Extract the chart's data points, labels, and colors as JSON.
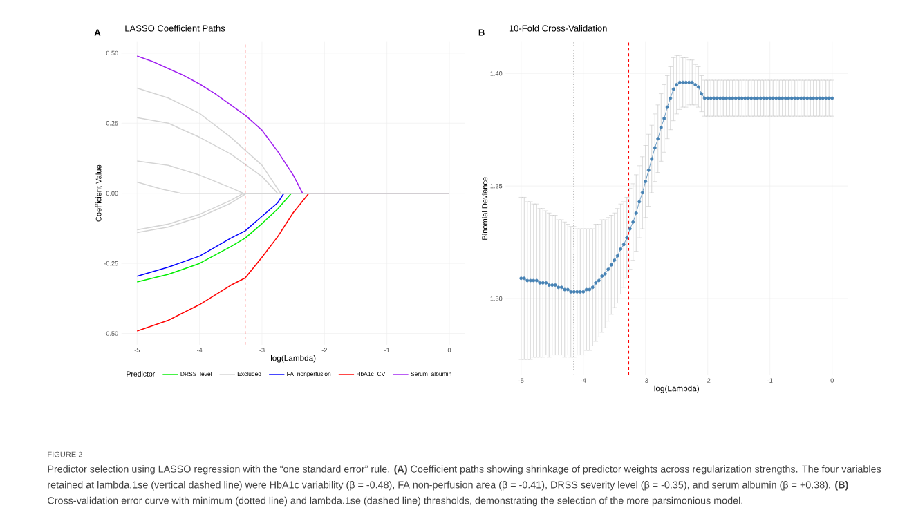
{
  "chart_data": [
    {
      "type": "line",
      "title": "LASSO Coefficient Paths",
      "xlabel": "log(Lambda)",
      "ylabel": "Coefficient Value",
      "legend_title": "Predictor",
      "annotations": [
        "A",
        "FIGURE 2",
        "Predictor selection using LASSO regression with the “one standard error” rule. **(A)** Coefficient paths showing shrinkage of predictor weights across regularization strengths. The four variables retained at lambda.1se (vertical dashed line) were HbA1c variability (β = -0.48), FA non-perfusion area (β = -0.41), DRSS severity level (β = -0.35), and serum albumin (β = +0.38). **(B)** Cross-validation error curve with minimum (dotted line) and lambda.1se (dashed line) thresholds, demonstrating the selection of the more parsimonious model."
      ],
      "xlim": [
        -5.25,
        0.25
      ],
      "ylim": [
        -0.54,
        0.54
      ],
      "xticks": [
        -5,
        -4,
        -3,
        -2,
        -1,
        0
      ],
      "yticks": [
        {
          "value": -0.5,
          "label": "-0.50"
        },
        {
          "value": -0.25,
          "label": "-0.25"
        },
        {
          "value": 0,
          "label": "0.00"
        },
        {
          "value": 0.25,
          "label": "0.25"
        },
        {
          "value": 0.5,
          "label": "0.50"
        }
      ],
      "grid": true,
      "legend": "bottom",
      "ref_lines": [
        {
          "axis": "x",
          "value": -3.27,
          "color": "#ff0000",
          "line_style": "dashed"
        }
      ],
      "series": [
        {
          "name": "DRSS_level",
          "color": "#00ee00",
          "x": [
            -5,
            -4.5,
            -4,
            -3.5,
            -3.27,
            -3,
            -2.75,
            -2.53,
            0
          ],
          "values": [
            -0.316,
            -0.289,
            -0.25,
            -0.19,
            -0.16,
            -0.108,
            -0.056,
            0,
            0
          ]
        },
        {
          "name": "Excluded",
          "color": "#d4d4d4",
          "x": [
            -5,
            -4.5,
            -4,
            -3.5,
            -3,
            -2.7,
            0
          ],
          "values": [
            0.375,
            0.34,
            0.285,
            0.2,
            0.1,
            0,
            0
          ]
        },
        {
          "name": "FA_nonperfusion",
          "color": "#0000ff",
          "x": [
            -5,
            -4.5,
            -4,
            -3.5,
            -3.27,
            -3,
            -2.75,
            -2.65,
            0
          ],
          "values": [
            -0.296,
            -0.263,
            -0.224,
            -0.16,
            -0.134,
            -0.082,
            -0.034,
            0,
            0
          ]
        },
        {
          "name": "HbA1c_CV",
          "color": "#ff0000",
          "x": [
            -5,
            -4.5,
            -4,
            -3.5,
            -3.27,
            -3,
            -2.75,
            -2.5,
            -2.25,
            0
          ],
          "values": [
            -0.491,
            -0.453,
            -0.397,
            -0.328,
            -0.302,
            -0.228,
            -0.155,
            -0.069,
            0,
            0
          ]
        },
        {
          "name": "Serum_albumin",
          "color": "#a020f0",
          "x": [
            -5,
            -4.75,
            -4.5,
            -4.25,
            -4,
            -3.75,
            -3.5,
            -3.25,
            -3,
            -2.75,
            -2.5,
            -2.35,
            0
          ],
          "values": [
            0.49,
            0.47,
            0.445,
            0.42,
            0.39,
            0.355,
            0.315,
            0.275,
            0.225,
            0.15,
            0.065,
            0,
            0
          ]
        },
        {
          "color": "#d4d4d4",
          "x": [
            -5,
            -4.5,
            -4,
            -3.5,
            -3,
            -2.75,
            0
          ],
          "values": [
            0.27,
            0.25,
            0.2,
            0.14,
            0.06,
            0,
            0
          ]
        },
        {
          "color": "#d4d4d4",
          "x": [
            -5,
            -4.5,
            -4,
            -3.5,
            -3.3,
            0
          ],
          "values": [
            0.115,
            0.1,
            0.065,
            0.02,
            0,
            0
          ]
        },
        {
          "color": "#d4d4d4",
          "x": [
            -5,
            -4.6,
            -4.3,
            0
          ],
          "values": [
            0.04,
            0.015,
            0,
            0
          ]
        },
        {
          "color": "#d4d4d4",
          "x": [
            -5,
            -4.5,
            -4,
            -3.5,
            -3.3,
            0
          ],
          "values": [
            -0.13,
            -0.11,
            -0.075,
            -0.025,
            0,
            0
          ]
        },
        {
          "color": "#d4d4d4",
          "x": [
            -5,
            -4.5,
            -4,
            -3.5,
            -3.25,
            0
          ],
          "values": [
            -0.14,
            -0.12,
            -0.085,
            -0.035,
            0,
            0
          ]
        }
      ]
    },
    {
      "type": "line",
      "title": "10-Fold Cross-Validation",
      "xlabel": "log(Lambda)",
      "ylabel": "Binomial Deviance",
      "annotations": [
        "B"
      ],
      "xlim": [
        -5.25,
        0.25
      ],
      "ylim": [
        1.266,
        1.414
      ],
      "xticks": [
        -5,
        -4,
        -3,
        -2,
        -1,
        0
      ],
      "yticks": [
        {
          "value": 1.3,
          "label": "1.30"
        },
        {
          "value": 1.35,
          "label": "1.35"
        },
        {
          "value": 1.4,
          "label": "1.40"
        }
      ],
      "grid": true,
      "marker": "circle",
      "ref_lines": [
        {
          "axis": "x",
          "value": -4.15,
          "color": "#333333",
          "line_style": "dotted"
        },
        {
          "axis": "x",
          "value": -3.27,
          "color": "#ff0000",
          "line_style": "dashed"
        }
      ],
      "x": [
        -5,
        -4.95,
        -4.9,
        -4.85,
        -4.8,
        -4.75,
        -4.7,
        -4.65,
        -4.6,
        -4.55,
        -4.5,
        -4.45,
        -4.4,
        -4.35,
        -4.3,
        -4.25,
        -4.2,
        -4.15,
        -4.1,
        -4.05,
        -4,
        -3.95,
        -3.9,
        -3.85,
        -3.8,
        -3.75,
        -3.7,
        -3.65,
        -3.6,
        -3.55,
        -3.5,
        -3.45,
        -3.4,
        -3.35,
        -3.3,
        -3.25,
        -3.2,
        -3.15,
        -3.1,
        -3.05,
        -3,
        -2.95,
        -2.9,
        -2.85,
        -2.8,
        -2.75,
        -2.7,
        -2.65,
        -2.6,
        -2.55,
        -2.5,
        -2.45,
        -2.4,
        -2.35,
        -2.3,
        -2.25,
        -2.2,
        -2.15,
        -2.1,
        -2.05,
        -2,
        -1.95,
        -1.9,
        -1.85,
        -1.8,
        -1.75,
        -1.7,
        -1.65,
        -1.6,
        -1.55,
        -1.5,
        -1.45,
        -1.4,
        -1.35,
        -1.3,
        -1.25,
        -1.2,
        -1.15,
        -1.1,
        -1.05,
        -1,
        -0.95,
        -0.9,
        -0.85,
        -0.8,
        -0.75,
        -0.7,
        -0.65,
        -0.6,
        -0.55,
        -0.5,
        -0.45,
        -0.4,
        -0.35,
        -0.3,
        -0.25,
        -0.2,
        -0.15,
        -0.1,
        -0.05,
        0
      ],
      "series": [
        {
          "color": "#4682b4",
          "values": [
            1.309,
            1.309,
            1.308,
            1.308,
            1.308,
            1.308,
            1.307,
            1.307,
            1.307,
            1.306,
            1.306,
            1.306,
            1.305,
            1.305,
            1.304,
            1.304,
            1.303,
            1.303,
            1.303,
            1.303,
            1.303,
            1.304,
            1.304,
            1.305,
            1.307,
            1.308,
            1.31,
            1.311,
            1.313,
            1.315,
            1.317,
            1.319,
            1.322,
            1.324,
            1.327,
            1.331,
            1.334,
            1.338,
            1.343,
            1.347,
            1.352,
            1.357,
            1.362,
            1.367,
            1.371,
            1.376,
            1.38,
            1.385,
            1.389,
            1.393,
            1.395,
            1.396,
            1.396,
            1.396,
            1.396,
            1.396,
            1.395,
            1.394,
            1.391,
            1.389,
            1.389,
            1.389,
            1.389,
            1.389,
            1.389,
            1.389,
            1.389,
            1.389,
            1.389,
            1.389,
            1.389,
            1.389,
            1.389,
            1.389,
            1.389,
            1.389,
            1.389,
            1.389,
            1.389,
            1.389,
            1.389,
            1.389,
            1.389,
            1.389,
            1.389,
            1.389,
            1.389,
            1.389,
            1.389,
            1.389,
            1.389,
            1.389,
            1.389,
            1.389,
            1.389,
            1.389,
            1.389,
            1.389,
            1.389,
            1.389,
            1.389
          ],
          "errors": [
            0.036,
            0.036,
            0.035,
            0.035,
            0.034,
            0.034,
            0.033,
            0.033,
            0.032,
            0.032,
            0.031,
            0.031,
            0.03,
            0.03,
            0.03,
            0.029,
            0.029,
            0.029,
            0.028,
            0.028,
            0.028,
            0.027,
            0.027,
            0.026,
            0.026,
            0.025,
            0.025,
            0.024,
            0.023,
            0.022,
            0.021,
            0.021,
            0.02,
            0.019,
            0.018,
            0.018,
            0.017,
            0.017,
            0.016,
            0.016,
            0.016,
            0.016,
            0.015,
            0.015,
            0.015,
            0.015,
            0.015,
            0.014,
            0.014,
            0.014,
            0.013,
            0.012,
            0.011,
            0.011,
            0.01,
            0.01,
            0.009,
            0.009,
            0.008,
            0.008,
            0.008,
            0.008,
            0.008,
            0.008,
            0.008,
            0.008,
            0.008,
            0.008,
            0.008,
            0.008,
            0.008,
            0.008,
            0.008,
            0.008,
            0.008,
            0.008,
            0.008,
            0.008,
            0.008,
            0.008,
            0.008,
            0.008,
            0.008,
            0.008,
            0.008,
            0.008,
            0.008,
            0.008,
            0.008,
            0.008,
            0.008,
            0.008,
            0.008,
            0.008,
            0.008,
            0.008,
            0.008,
            0.008,
            0.008,
            0.008,
            0.008
          ]
        }
      ]
    }
  ]
}
